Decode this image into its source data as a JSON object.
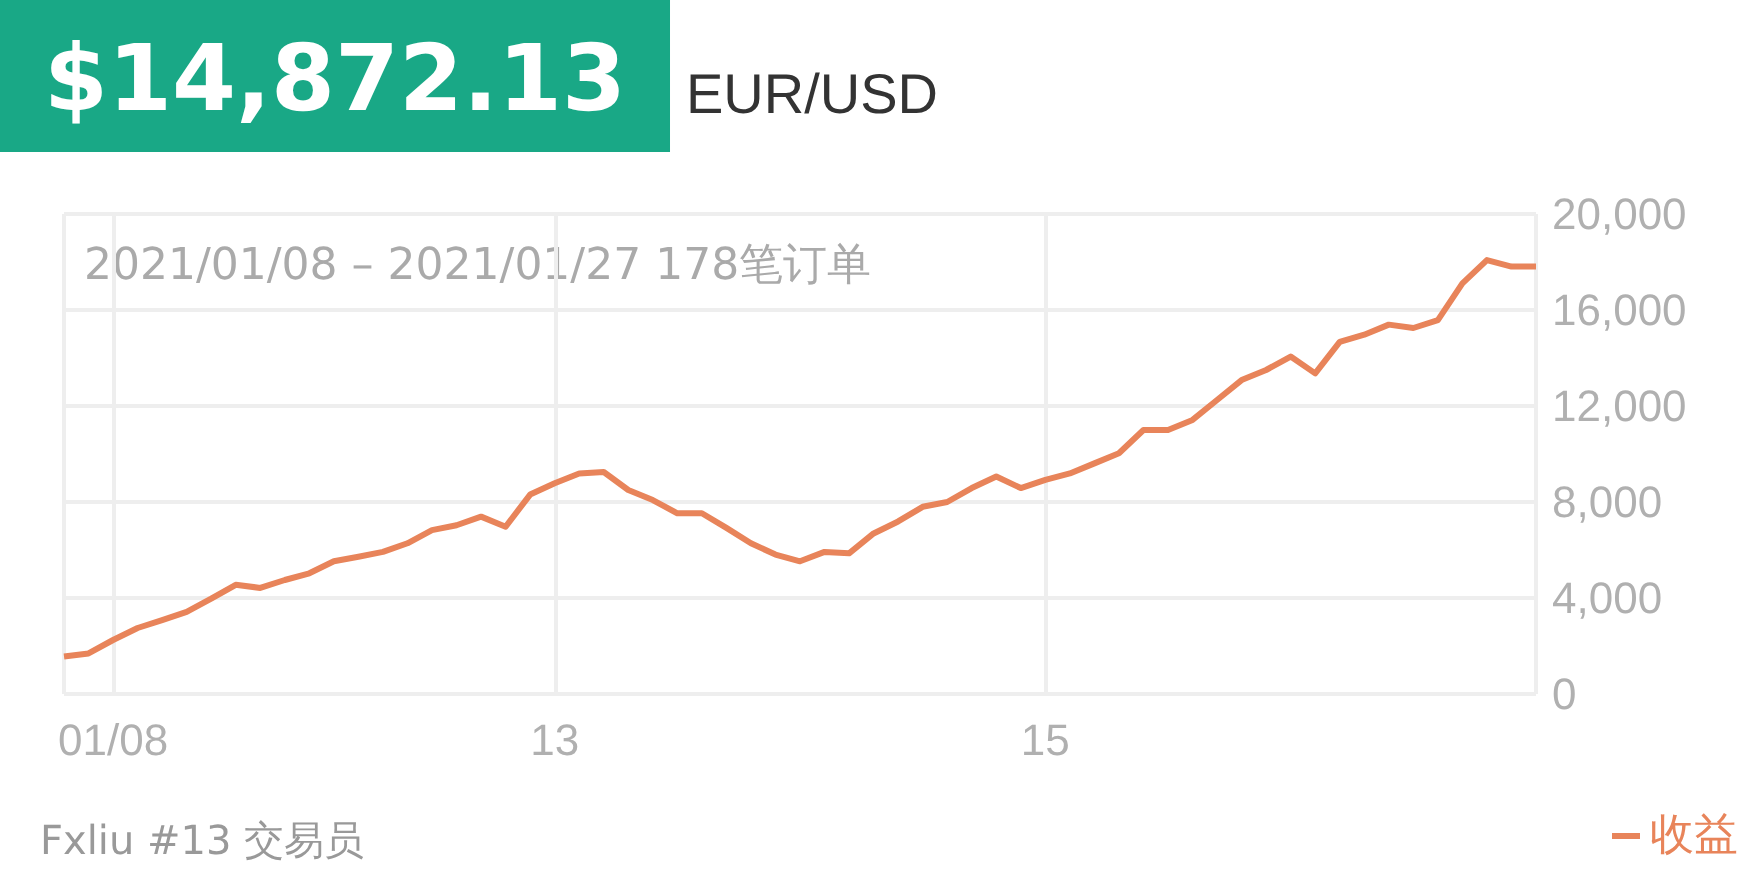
{
  "chart_data": {
    "type": "line",
    "title": "$14,872.13",
    "subtitle": "EUR/USD",
    "annotations": [
      "2021/01/08 – 2021/01/27 178笔订单",
      "Fxliu #13 交易员"
    ],
    "categories": [
      null,
      null,
      "01/08",
      null,
      null,
      null,
      null,
      null,
      null,
      null,
      null,
      null,
      null,
      null,
      null,
      null,
      null,
      null,
      null,
      null,
      "13",
      null,
      null,
      null,
      null,
      null,
      null,
      null,
      null,
      null,
      null,
      null,
      null,
      null,
      null,
      null,
      null,
      null,
      null,
      null,
      "15",
      null,
      null,
      null,
      null,
      null,
      null,
      null,
      null,
      null,
      null,
      null,
      null,
      null,
      null,
      null,
      null,
      null,
      null,
      null,
      null
    ],
    "series": [
      {
        "name": "收益",
        "color": "#e8845a",
        "values": [
          1560,
          1690,
          2250,
          2750,
          3080,
          3420,
          3970,
          4550,
          4420,
          4750,
          5030,
          5530,
          5720,
          5920,
          6280,
          6830,
          7030,
          7390,
          6970,
          8310,
          8780,
          9190,
          9250,
          8500,
          8080,
          7530,
          7530,
          6920,
          6280,
          5810,
          5530,
          5920,
          5860,
          6690,
          7190,
          7800,
          8000,
          8580,
          9060,
          8580,
          8920,
          9190,
          9610,
          10030,
          11000,
          11000,
          11420,
          12250,
          13080,
          13500,
          14060,
          13360,
          14670,
          14970,
          15390,
          15250,
          15580,
          17110,
          18080,
          17810,
          17810
        ]
      }
    ],
    "ylim": [
      0,
      20000
    ],
    "yticks": [
      0,
      {
        "value": 4000,
        "label": "4,000"
      },
      {
        "value": 8000,
        "label": "8,000"
      },
      {
        "value": 12000,
        "label": "12,000"
      },
      {
        "value": 16000,
        "label": "16,000"
      },
      {
        "value": 20000,
        "label": "20,000"
      }
    ],
    "grid": true,
    "legend": "bottom right",
    "marker": "none",
    "line_style": "solid"
  }
}
